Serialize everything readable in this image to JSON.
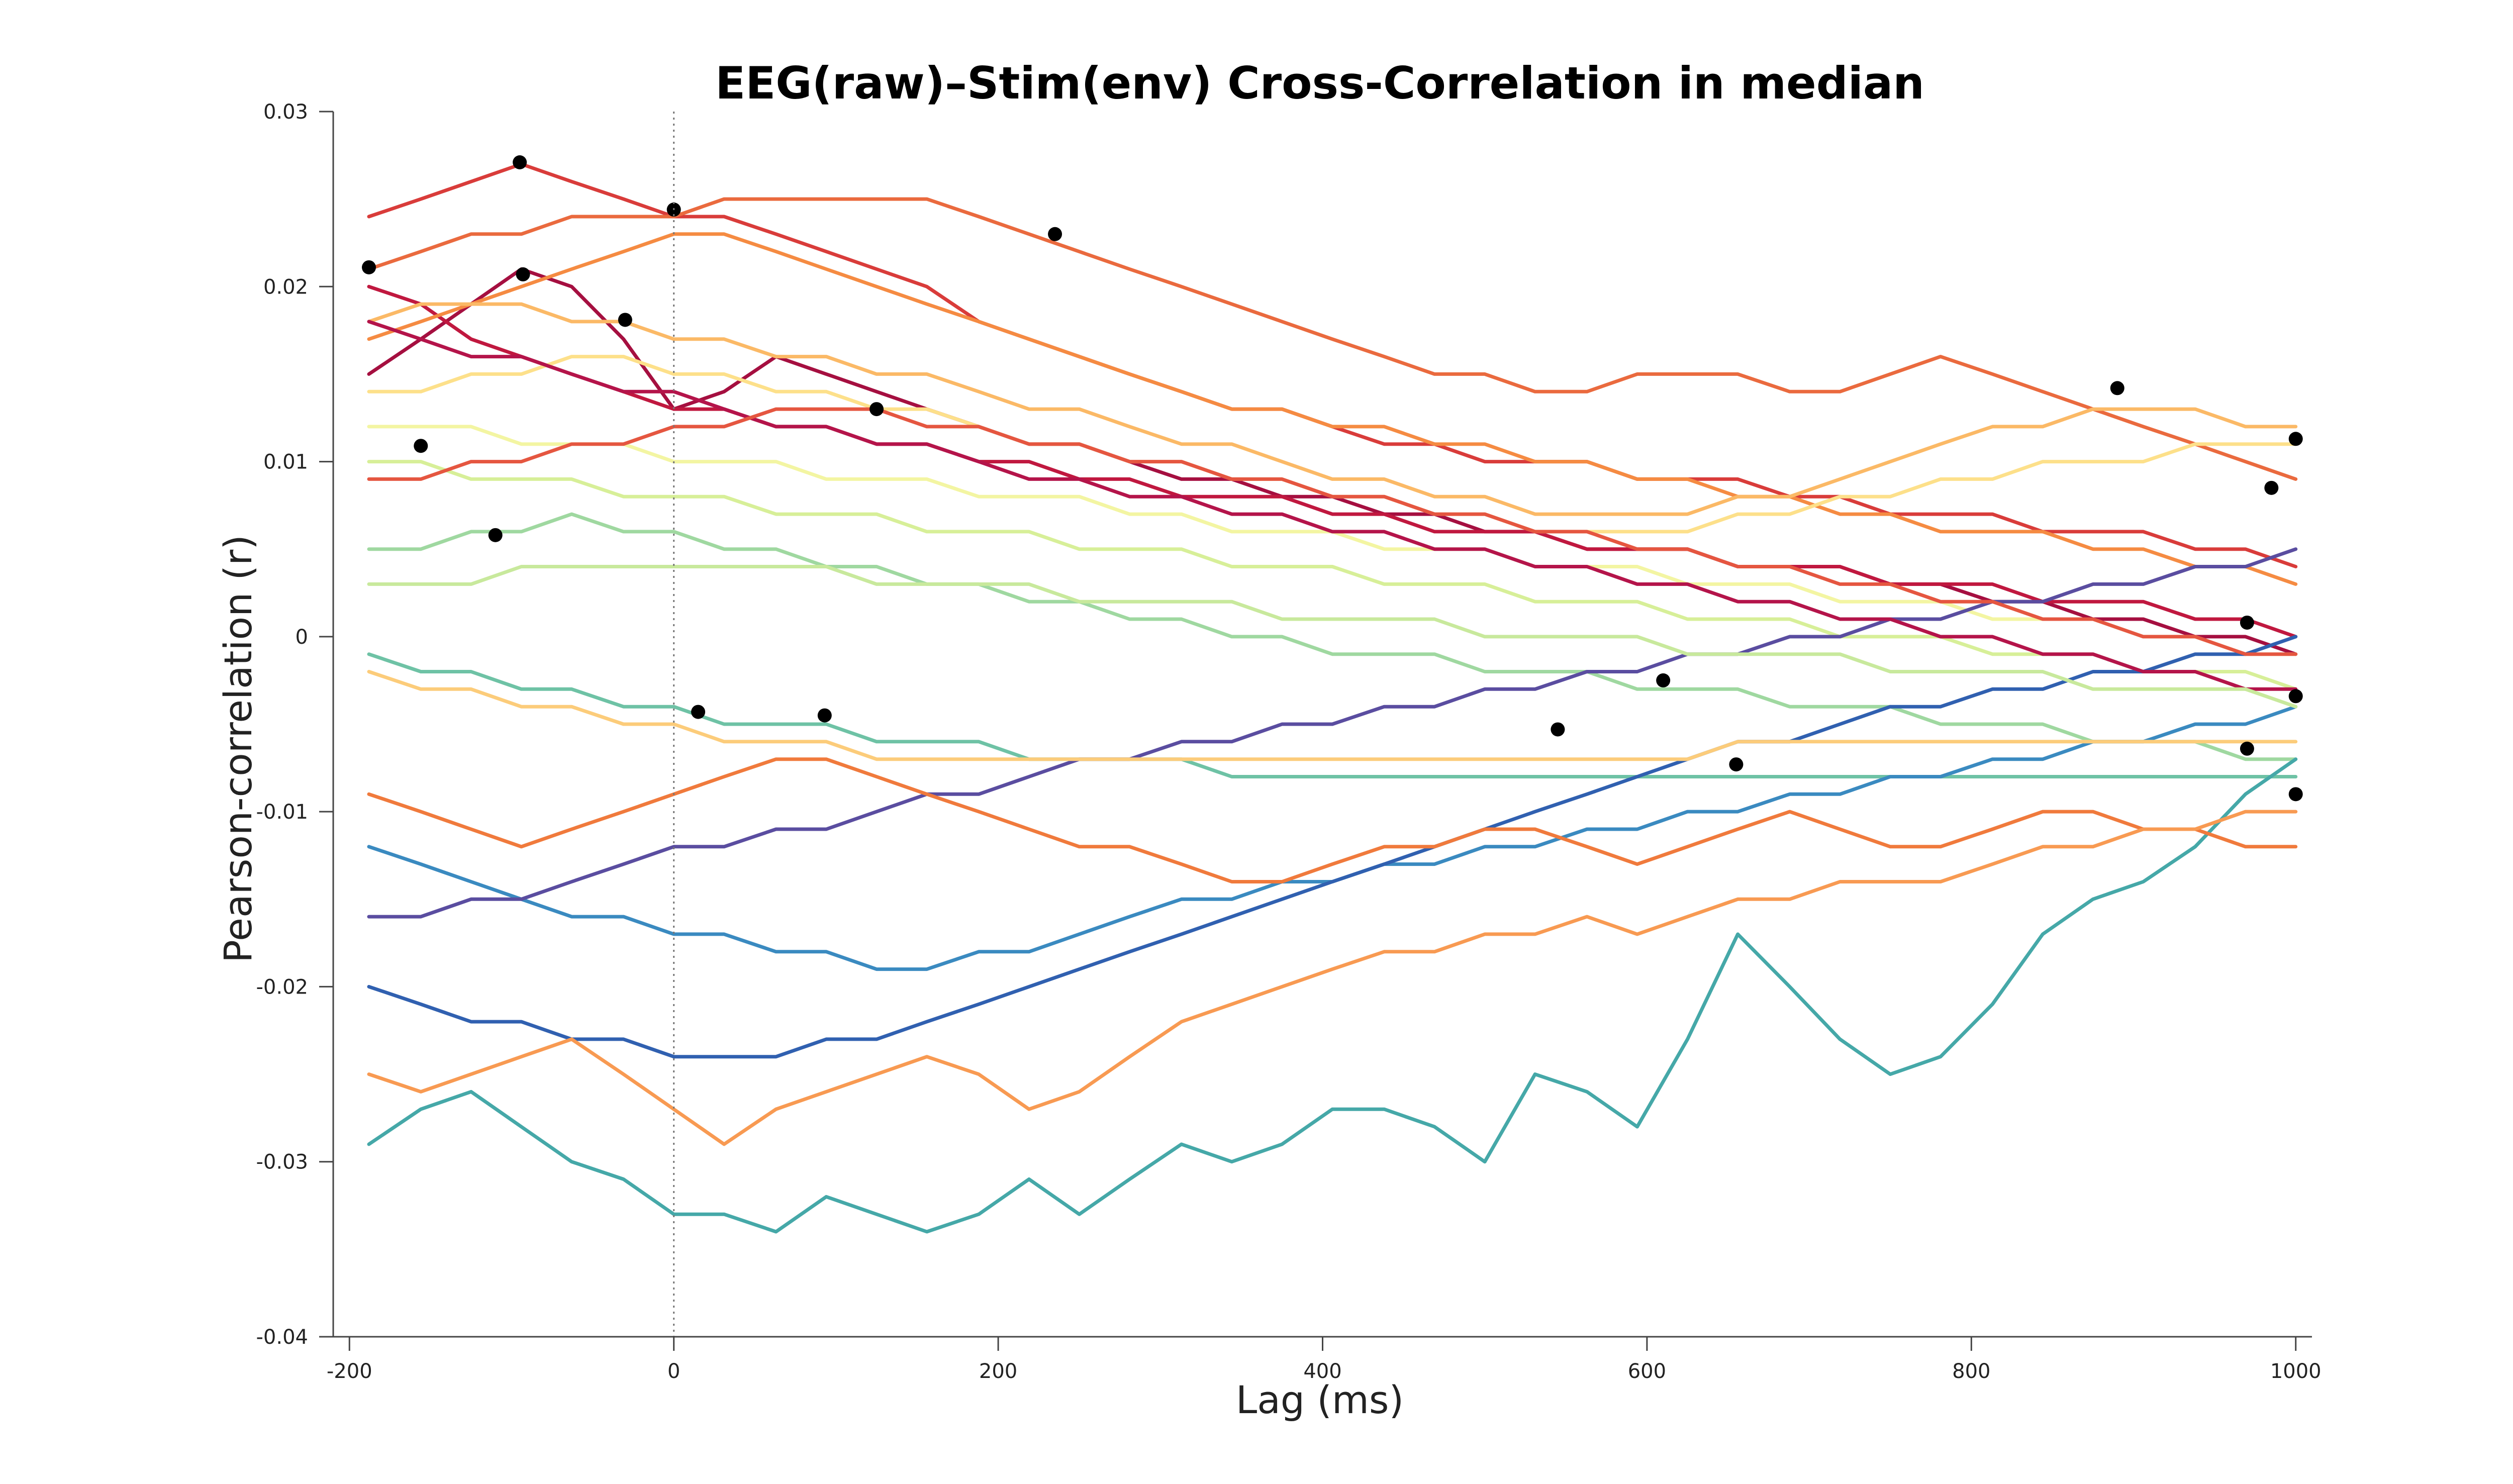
{
  "chart_data": {
    "type": "line",
    "title": "EEG(raw)–Stim(env) Cross-Correlation in median",
    "xlabel": "Lag (ms)",
    "ylabel": "Pearson-correlation (r)",
    "xlim": [
      -210,
      1010
    ],
    "ylim": [
      -0.04,
      0.03
    ],
    "xticks": [
      -200,
      0,
      200,
      400,
      600,
      800,
      1000
    ],
    "xtick_labels": [
      "-200",
      "0",
      "200",
      "400",
      "600",
      "800",
      "1000"
    ],
    "yticks": [
      0.03,
      0.02,
      0.01,
      0,
      -0.01,
      -0.02,
      -0.03,
      -0.04
    ],
    "ytick_labels": [
      "0.03",
      "0.02",
      "0.01",
      "0",
      "-0.01",
      "-0.02",
      "-0.03",
      "-0.04"
    ],
    "grid": false,
    "legend": "none",
    "x": [
      -188,
      -156,
      -125,
      -94,
      -63,
      -31,
      0,
      31,
      63,
      94,
      125,
      156,
      188,
      219,
      250,
      281,
      313,
      344,
      375,
      406,
      438,
      469,
      500,
      531,
      563,
      594,
      625,
      656,
      688,
      719,
      750,
      781,
      813,
      844,
      875,
      906,
      938,
      969,
      1000
    ],
    "series": [
      {
        "color": "#a50f40",
        "values": [
          0.015,
          0.017,
          0.019,
          0.021,
          0.02,
          0.017,
          0.013,
          0.014,
          0.016,
          0.015,
          0.014,
          0.013,
          0.012,
          0.011,
          0.011,
          0.01,
          0.009,
          0.009,
          0.008,
          0.008,
          0.007,
          0.007,
          0.006,
          0.006,
          0.005,
          0.005,
          0.005,
          0.004,
          0.004,
          0.004,
          0.003,
          0.003,
          0.002,
          0.002,
          0.001,
          0.001,
          0.0,
          0.0,
          -0.001
        ],
        "peak": [
          -95,
          0.0271
        ]
      },
      {
        "color": "#c0183f",
        "values": [
          0.02,
          0.019,
          0.017,
          0.016,
          0.015,
          0.014,
          0.013,
          0.013,
          0.012,
          0.012,
          0.011,
          0.011,
          0.01,
          0.01,
          0.009,
          0.009,
          0.008,
          0.008,
          0.008,
          0.007,
          0.007,
          0.006,
          0.006,
          0.006,
          0.005,
          0.005,
          0.005,
          0.004,
          0.004,
          0.004,
          0.003,
          0.003,
          0.003,
          0.002,
          0.002,
          0.002,
          0.001,
          0.001,
          0.0
        ],
        "peak": [
          -188,
          0.0211
        ]
      },
      {
        "color": "#d93c3a",
        "values": [
          0.024,
          0.025,
          0.026,
          0.027,
          0.026,
          0.025,
          0.024,
          0.024,
          0.023,
          0.022,
          0.021,
          0.02,
          0.018,
          0.017,
          0.016,
          0.015,
          0.014,
          0.013,
          0.013,
          0.012,
          0.011,
          0.011,
          0.01,
          0.01,
          0.01,
          0.009,
          0.009,
          0.009,
          0.008,
          0.008,
          0.007,
          0.007,
          0.007,
          0.006,
          0.006,
          0.006,
          0.005,
          0.005,
          0.004
        ],
        "peak": [
          -93,
          0.0207
        ]
      },
      {
        "color": "#ea6a3e",
        "values": [
          0.021,
          0.022,
          0.023,
          0.023,
          0.024,
          0.024,
          0.024,
          0.025,
          0.025,
          0.025,
          0.025,
          0.025,
          0.024,
          0.023,
          0.022,
          0.021,
          0.02,
          0.019,
          0.018,
          0.017,
          0.016,
          0.015,
          0.015,
          0.014,
          0.014,
          0.015,
          0.015,
          0.015,
          0.014,
          0.014,
          0.015,
          0.016,
          0.015,
          0.014,
          0.013,
          0.012,
          0.011,
          0.01,
          0.009
        ],
        "peak": [
          235,
          0.023
        ]
      },
      {
        "color": "#f58b42",
        "values": [
          0.017,
          0.018,
          0.019,
          0.02,
          0.021,
          0.022,
          0.023,
          0.023,
          0.022,
          0.021,
          0.02,
          0.019,
          0.018,
          0.017,
          0.016,
          0.015,
          0.014,
          0.013,
          0.013,
          0.012,
          0.012,
          0.011,
          0.011,
          0.01,
          0.01,
          0.009,
          0.009,
          0.008,
          0.008,
          0.007,
          0.007,
          0.006,
          0.006,
          0.006,
          0.005,
          0.005,
          0.004,
          0.004,
          0.003
        ],
        "peak": [
          0,
          0.0244
        ]
      },
      {
        "color": "#fbb966",
        "values": [
          0.018,
          0.019,
          0.019,
          0.019,
          0.018,
          0.018,
          0.017,
          0.017,
          0.016,
          0.016,
          0.015,
          0.015,
          0.014,
          0.013,
          0.013,
          0.012,
          0.011,
          0.011,
          0.01,
          0.009,
          0.009,
          0.008,
          0.008,
          0.007,
          0.007,
          0.007,
          0.007,
          0.008,
          0.008,
          0.009,
          0.01,
          0.011,
          0.012,
          0.012,
          0.013,
          0.013,
          0.013,
          0.012,
          0.012
        ],
        "peak": [
          1000,
          0.0113
        ]
      },
      {
        "color": "#fde08a",
        "values": [
          0.014,
          0.014,
          0.015,
          0.015,
          0.016,
          0.016,
          0.015,
          0.015,
          0.014,
          0.014,
          0.013,
          0.013,
          0.012,
          0.011,
          0.011,
          0.01,
          0.01,
          0.009,
          0.009,
          0.008,
          0.008,
          0.007,
          0.007,
          0.006,
          0.006,
          0.006,
          0.006,
          0.007,
          0.007,
          0.008,
          0.008,
          0.009,
          0.009,
          0.01,
          0.01,
          0.01,
          0.011,
          0.011,
          0.011
        ],
        "peak": [
          890,
          0.0142
        ]
      },
      {
        "color": "#f3f5a2",
        "values": [
          0.012,
          0.012,
          0.012,
          0.011,
          0.011,
          0.011,
          0.01,
          0.01,
          0.01,
          0.009,
          0.009,
          0.009,
          0.008,
          0.008,
          0.008,
          0.007,
          0.007,
          0.006,
          0.006,
          0.006,
          0.005,
          0.005,
          0.005,
          0.004,
          0.004,
          0.004,
          0.003,
          0.003,
          0.003,
          0.002,
          0.002,
          0.002,
          0.001,
          0.001,
          0.001,
          0.0,
          0.0,
          -0.001,
          -0.001
        ],
        "peak": [
          125,
          0.013
        ]
      },
      {
        "color": "#d7ef98",
        "values": [
          0.01,
          0.01,
          0.009,
          0.009,
          0.009,
          0.008,
          0.008,
          0.008,
          0.007,
          0.007,
          0.007,
          0.006,
          0.006,
          0.006,
          0.005,
          0.005,
          0.005,
          0.004,
          0.004,
          0.004,
          0.003,
          0.003,
          0.003,
          0.002,
          0.002,
          0.002,
          0.001,
          0.001,
          0.001,
          0.0,
          0.0,
          0.0,
          -0.001,
          -0.001,
          -0.001,
          -0.002,
          -0.002,
          -0.002,
          -0.003
        ],
        "peak": [
          -156,
          0.0109
        ]
      },
      {
        "color": "#9fd8a0",
        "values": [
          0.005,
          0.005,
          0.006,
          0.006,
          0.007,
          0.006,
          0.006,
          0.005,
          0.005,
          0.004,
          0.004,
          0.003,
          0.003,
          0.002,
          0.002,
          0.001,
          0.001,
          0.0,
          0.0,
          -0.001,
          -0.001,
          -0.001,
          -0.002,
          -0.002,
          -0.002,
          -0.003,
          -0.003,
          -0.003,
          -0.004,
          -0.004,
          -0.004,
          -0.005,
          -0.005,
          -0.005,
          -0.006,
          -0.006,
          -0.006,
          -0.007,
          -0.007
        ],
        "peak": [
          -110,
          0.0058
        ]
      },
      {
        "color": "#6ec2a5",
        "values": [
          -0.001,
          -0.002,
          -0.002,
          -0.003,
          -0.003,
          -0.004,
          -0.004,
          -0.005,
          -0.005,
          -0.005,
          -0.006,
          -0.006,
          -0.006,
          -0.007,
          -0.007,
          -0.007,
          -0.007,
          -0.008,
          -0.008,
          -0.008,
          -0.008,
          -0.008,
          -0.008,
          -0.008,
          -0.008,
          -0.008,
          -0.008,
          -0.008,
          -0.008,
          -0.008,
          -0.008,
          -0.008,
          -0.008,
          -0.008,
          -0.008,
          -0.008,
          -0.008,
          -0.008,
          -0.008
        ],
        "peak": [
          15,
          -0.0043
        ]
      },
      {
        "color": "#45a8a8",
        "values": [
          -0.029,
          -0.027,
          -0.026,
          -0.028,
          -0.03,
          -0.031,
          -0.033,
          -0.033,
          -0.034,
          -0.032,
          -0.033,
          -0.034,
          -0.033,
          -0.031,
          -0.033,
          -0.031,
          -0.029,
          -0.03,
          -0.029,
          -0.027,
          -0.027,
          -0.028,
          -0.03,
          -0.025,
          -0.026,
          -0.028,
          -0.023,
          -0.017,
          -0.02,
          -0.023,
          -0.025,
          -0.024,
          -0.021,
          -0.017,
          -0.015,
          -0.014,
          -0.012,
          -0.009,
          -0.007
        ],
        "peak": [
          655,
          -0.0073
        ]
      },
      {
        "color": "#3a8ac0",
        "values": [
          -0.012,
          -0.013,
          -0.014,
          -0.015,
          -0.016,
          -0.016,
          -0.017,
          -0.017,
          -0.018,
          -0.018,
          -0.019,
          -0.019,
          -0.018,
          -0.018,
          -0.017,
          -0.016,
          -0.015,
          -0.015,
          -0.014,
          -0.014,
          -0.013,
          -0.013,
          -0.012,
          -0.012,
          -0.011,
          -0.011,
          -0.01,
          -0.01,
          -0.009,
          -0.009,
          -0.008,
          -0.008,
          -0.007,
          -0.007,
          -0.006,
          -0.006,
          -0.005,
          -0.005,
          -0.004
        ],
        "peak": [
          545,
          -0.0053
        ]
      },
      {
        "color": "#3060b0",
        "values": [
          -0.02,
          -0.021,
          -0.022,
          -0.022,
          -0.023,
          -0.023,
          -0.024,
          -0.024,
          -0.024,
          -0.023,
          -0.023,
          -0.022,
          -0.021,
          -0.02,
          -0.019,
          -0.018,
          -0.017,
          -0.016,
          -0.015,
          -0.014,
          -0.013,
          -0.012,
          -0.011,
          -0.01,
          -0.009,
          -0.008,
          -0.007,
          -0.006,
          -0.006,
          -0.005,
          -0.004,
          -0.004,
          -0.003,
          -0.003,
          -0.002,
          -0.002,
          -0.001,
          -0.001,
          0.0
        ],
        "peak": [
          610,
          -0.0025
        ]
      },
      {
        "color": "#5a4da0",
        "values": [
          -0.016,
          -0.016,
          -0.015,
          -0.015,
          -0.014,
          -0.013,
          -0.012,
          -0.012,
          -0.011,
          -0.011,
          -0.01,
          -0.009,
          -0.009,
          -0.008,
          -0.007,
          -0.007,
          -0.006,
          -0.006,
          -0.005,
          -0.005,
          -0.004,
          -0.004,
          -0.003,
          -0.003,
          -0.002,
          -0.002,
          -0.001,
          -0.001,
          0.0,
          0.0,
          0.001,
          0.001,
          0.002,
          0.002,
          0.003,
          0.003,
          0.004,
          0.004,
          0.005
        ],
        "peak": [
          985,
          0.0085
        ]
      },
      {
        "color": "#f07a3c",
        "values": [
          -0.009,
          -0.01,
          -0.011,
          -0.012,
          -0.011,
          -0.01,
          -0.009,
          -0.008,
          -0.007,
          -0.007,
          -0.008,
          -0.009,
          -0.01,
          -0.011,
          -0.012,
          -0.012,
          -0.013,
          -0.014,
          -0.014,
          -0.013,
          -0.012,
          -0.012,
          -0.011,
          -0.011,
          -0.012,
          -0.013,
          -0.012,
          -0.011,
          -0.01,
          -0.011,
          -0.012,
          -0.012,
          -0.011,
          -0.01,
          -0.01,
          -0.011,
          -0.011,
          -0.012,
          -0.012
        ],
        "peak": [
          93,
          -0.0045
        ]
      },
      {
        "color": "#f89a52",
        "values": [
          -0.025,
          -0.026,
          -0.025,
          -0.024,
          -0.023,
          -0.025,
          -0.027,
          -0.029,
          -0.027,
          -0.026,
          -0.025,
          -0.024,
          -0.025,
          -0.027,
          -0.026,
          -0.024,
          -0.022,
          -0.021,
          -0.02,
          -0.019,
          -0.018,
          -0.018,
          -0.017,
          -0.017,
          -0.016,
          -0.017,
          -0.016,
          -0.015,
          -0.015,
          -0.014,
          -0.014,
          -0.014,
          -0.013,
          -0.012,
          -0.012,
          -0.011,
          -0.011,
          -0.01,
          -0.01
        ],
        "peak": [
          1000,
          -0.009
        ]
      },
      {
        "color": "#b4144a",
        "values": [
          0.018,
          0.017,
          0.016,
          0.016,
          0.015,
          0.014,
          0.014,
          0.013,
          0.012,
          0.012,
          0.011,
          0.011,
          0.01,
          0.009,
          0.009,
          0.008,
          0.008,
          0.007,
          0.007,
          0.006,
          0.006,
          0.005,
          0.005,
          0.004,
          0.004,
          0.003,
          0.003,
          0.002,
          0.002,
          0.001,
          0.001,
          0.0,
          0.0,
          -0.001,
          -0.001,
          -0.002,
          -0.002,
          -0.003,
          -0.003
        ],
        "peak": [
          1000,
          -0.0034
        ]
      },
      {
        "color": "#e55640",
        "values": [
          0.009,
          0.009,
          0.01,
          0.01,
          0.011,
          0.011,
          0.012,
          0.012,
          0.013,
          0.013,
          0.013,
          0.012,
          0.012,
          0.011,
          0.011,
          0.01,
          0.01,
          0.009,
          0.009,
          0.008,
          0.008,
          0.007,
          0.007,
          0.006,
          0.006,
          0.005,
          0.005,
          0.004,
          0.004,
          0.003,
          0.003,
          0.002,
          0.002,
          0.001,
          0.001,
          0.0,
          0.0,
          -0.001,
          -0.001
        ],
        "peak": [
          -30,
          0.0181
        ]
      },
      {
        "color": "#fccc7a",
        "values": [
          -0.002,
          -0.003,
          -0.003,
          -0.004,
          -0.004,
          -0.005,
          -0.005,
          -0.006,
          -0.006,
          -0.006,
          -0.007,
          -0.007,
          -0.007,
          -0.007,
          -0.007,
          -0.007,
          -0.007,
          -0.007,
          -0.007,
          -0.007,
          -0.007,
          -0.007,
          -0.007,
          -0.007,
          -0.007,
          -0.007,
          -0.007,
          -0.006,
          -0.006,
          -0.006,
          -0.006,
          -0.006,
          -0.006,
          -0.006,
          -0.006,
          -0.006,
          -0.006,
          -0.006,
          -0.006
        ],
        "peak": [
          970,
          -0.0064
        ]
      },
      {
        "color": "#c8e99c",
        "values": [
          0.003,
          0.003,
          0.003,
          0.004,
          0.004,
          0.004,
          0.004,
          0.004,
          0.004,
          0.004,
          0.003,
          0.003,
          0.003,
          0.003,
          0.002,
          0.002,
          0.002,
          0.002,
          0.001,
          0.001,
          0.001,
          0.001,
          0.0,
          0.0,
          0.0,
          0.0,
          -0.001,
          -0.001,
          -0.001,
          -0.001,
          -0.002,
          -0.002,
          -0.002,
          -0.002,
          -0.003,
          -0.003,
          -0.003,
          -0.003,
          -0.004
        ],
        "peak": [
          970,
          0.0008
        ]
      }
    ]
  }
}
